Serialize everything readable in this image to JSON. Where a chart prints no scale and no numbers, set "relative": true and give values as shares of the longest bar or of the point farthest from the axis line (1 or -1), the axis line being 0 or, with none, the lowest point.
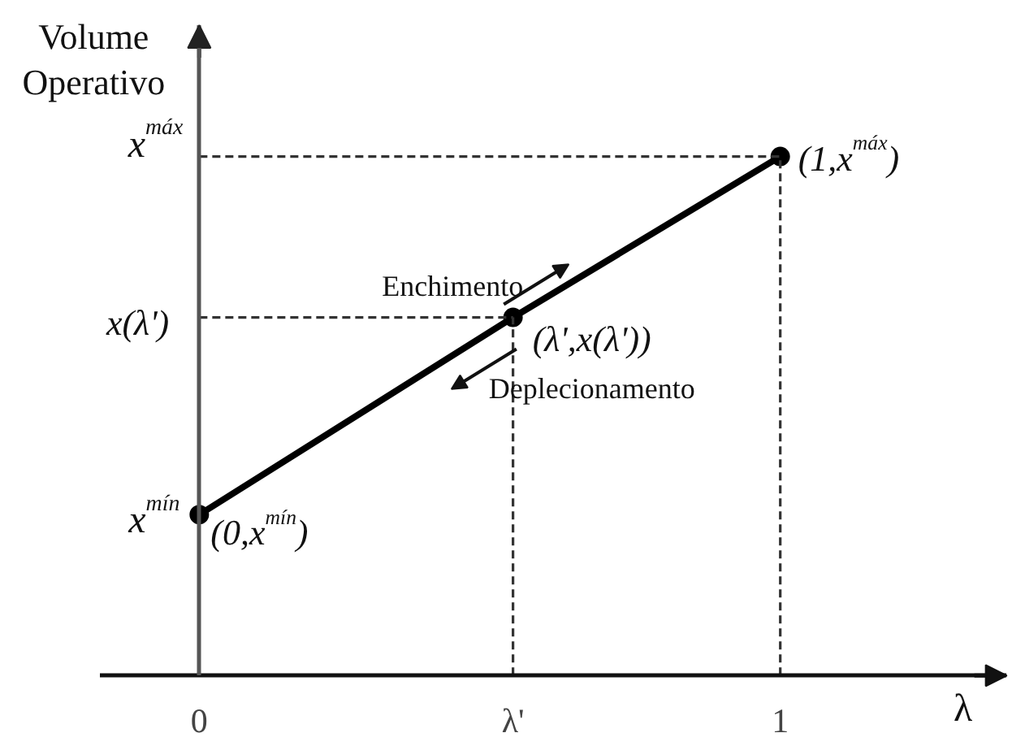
{
  "chart_data": {
    "type": "line",
    "relative": true,
    "ylabel": "Volume Operativo",
    "xlabel": "λ",
    "xlim": [
      -0.17,
      1.39
    ],
    "xticks": [
      0,
      {
        "value": 0.54,
        "label": "λ'"
      },
      1
    ],
    "series": [
      {
        "color": "#000000",
        "x": [
          0,
          0.54,
          1
        ],
        "values": [
          0.31,
          0.69,
          1
        ],
        "marker": "circle"
      },
      {
        "color": "#333333",
        "x": [
          0,
          1
        ],
        "values": [
          1,
          1
        ],
        "line_style": "dashed"
      },
      {
        "color": "#333333",
        "x": [
          1,
          1
        ],
        "values": [
          0,
          1
        ],
        "line_style": "dashed"
      },
      {
        "color": "#333333",
        "x": [
          0,
          0.54
        ],
        "values": [
          0.69,
          0.69
        ],
        "line_style": "dashed"
      },
      {
        "color": "#333333",
        "x": [
          0.54,
          0.54
        ],
        "values": [
          0,
          0.69
        ],
        "line_style": "dashed"
      }
    ],
    "annotations": [
      {
        "text": "x$^{máx}$",
        "x": 0,
        "y": 1
      },
      {
        "text": "x(λ')",
        "x": 0,
        "y": 0.69
      },
      {
        "text": "x$^{mín}$",
        "x": 0,
        "y": 0.31
      },
      {
        "text": "(1,x$^{máx}$)",
        "x": 1,
        "y": 1
      },
      {
        "text": "(λ',x(λ'))",
        "x": 0.54,
        "y": 0.69
      },
      {
        "text": "(0,x$^{mín}$)",
        "x": 0,
        "y": 0.31
      },
      {
        "text": "Enchimento",
        "x": 0.58,
        "y": 0.71
      },
      {
        "text": "Deplecionamento",
        "x": 0.49,
        "y": 0.65
      }
    ]
  }
}
